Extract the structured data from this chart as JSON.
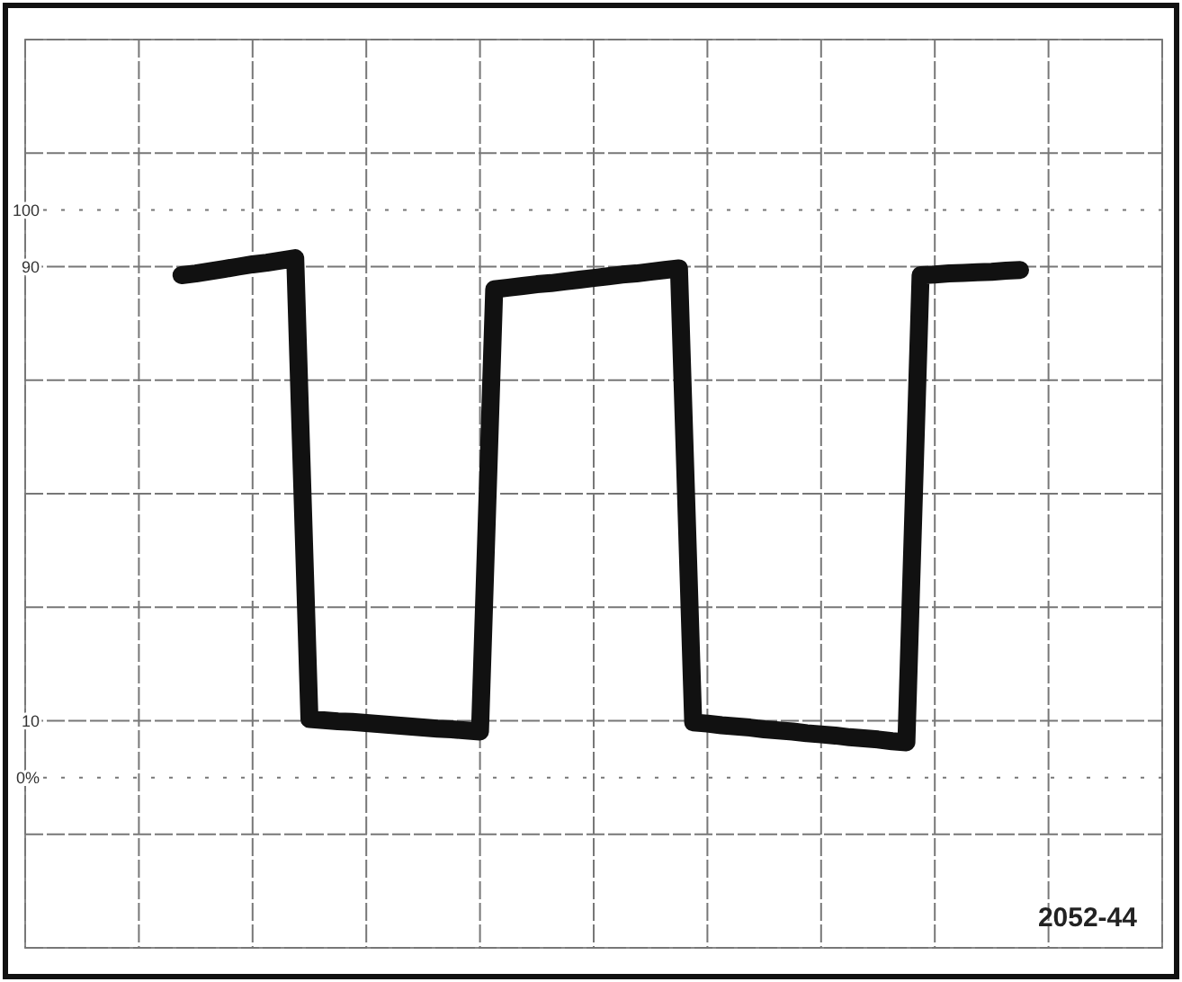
{
  "chart_data": {
    "type": "line",
    "categories": [
      null,
      null,
      null,
      null,
      null,
      null,
      null,
      null,
      null,
      null,
      null,
      null,
      null,
      null,
      null,
      null,
      null,
      null,
      null,
      null,
      null,
      null,
      null,
      null,
      null,
      null,
      null,
      null,
      null,
      null,
      null,
      null,
      null,
      null,
      null,
      null,
      null,
      null,
      null,
      null,
      null,
      null,
      null,
      null,
      null,
      null,
      null,
      null,
      null,
      null,
      null,
      null,
      null,
      null,
      null,
      null,
      null,
      null,
      null,
      null,
      null,
      null,
      null,
      null,
      null,
      null,
      null,
      null,
      null,
      null,
      null,
      null,
      null,
      null,
      null,
      null,
      null,
      null,
      null,
      null,
      null
    ],
    "series": [
      {
        "color": "#111111",
        "values": [
          null,
          null,
          null,
          null,
          null,
          null,
          null,
          null,
          null,
          null,
          null,
          88.5,
          88.8,
          89.2,
          89.6,
          90.0,
          90.4,
          90.7,
          91.1,
          91.5,
          10.3,
          10.1,
          9.9,
          9.8,
          9.6,
          9.4,
          9.2,
          9.0,
          8.8,
          8.6,
          8.5,
          8.3,
          8.1,
          86.0,
          86.3,
          86.6,
          86.9,
          87.1,
          87.4,
          87.7,
          88.0,
          88.3,
          88.6,
          88.8,
          89.1,
          89.4,
          89.7,
          9.7,
          9.5,
          9.2,
          9.0,
          8.8,
          8.5,
          8.3,
          8.1,
          7.8,
          7.6,
          7.4,
          7.1,
          6.9,
          6.7,
          6.4,
          6.2,
          88.5,
          88.6,
          88.8,
          88.9,
          89.0,
          89.1,
          89.3,
          89.4,
          null,
          null,
          null,
          null,
          null,
          null,
          null,
          null,
          null,
          null
        ]
      }
    ],
    "ylim": [
      -30,
      130
    ],
    "yticks": [
      {
        "value": 130,
        "label": null
      },
      {
        "value": 110,
        "label": null
      },
      100,
      90,
      {
        "value": 70,
        "label": null
      },
      {
        "value": 50,
        "label": null
      },
      {
        "value": 30,
        "label": null
      },
      10,
      {
        "value": 0,
        "label": "0%"
      },
      {
        "value": -10,
        "label": null
      },
      {
        "value": -30,
        "label": null
      }
    ],
    "grid": true,
    "tick_labels": "y",
    "marker": "none",
    "line_style": "solid",
    "annotations": [
      "2052-44"
    ]
  }
}
